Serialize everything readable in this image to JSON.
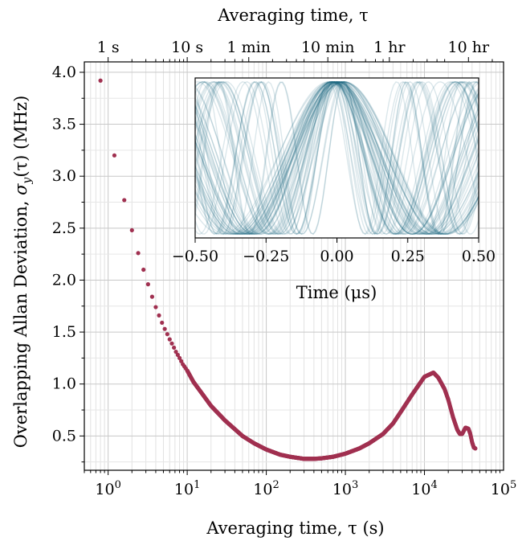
{
  "chart_data": [
    {
      "type": "scatter",
      "xlabel": "Averaging time, τ (s)",
      "ylabel": "Overlapping Allan Deviation, σ_y(τ) (MHz)",
      "ylabel_parts": {
        "pre": "Overlapping Allan Deviation, ",
        "sigma": "σ",
        "sub": "y",
        "tau": "(τ) (MHz)"
      },
      "xscale": "log",
      "xlim": [
        0.5,
        100000
      ],
      "ylim": [
        0.17,
        4.1
      ],
      "grid": true,
      "color": "#a03050",
      "x_ticks": [
        "10^0",
        "10^1",
        "10^2",
        "10^3",
        "10^4",
        "10^5"
      ],
      "x_tick_base": "10",
      "x_tick_exps": [
        "0",
        "1",
        "2",
        "3",
        "4",
        "5"
      ],
      "y_ticks": [
        "0.5",
        "1.0",
        "1.5",
        "2.0",
        "2.5",
        "3.0",
        "3.5",
        "4.0"
      ],
      "top_axis": {
        "label": "Averaging time, τ",
        "ticks": [
          {
            "label": "1 s",
            "seconds": 1
          },
          {
            "label": "10 s",
            "seconds": 10
          },
          {
            "label": "1 min",
            "seconds": 60
          },
          {
            "label": "10 min",
            "seconds": 600
          },
          {
            "label": "1 hr",
            "seconds": 3600
          },
          {
            "label": "10 hr",
            "seconds": 36000
          }
        ]
      },
      "series": [
        {
          "x": [
            0.8,
            1.2,
            1.6,
            2.0,
            2.4,
            2.8,
            3.2,
            3.6,
            4.0,
            4.4,
            4.8,
            5.2,
            5.6,
            6.0,
            6.4,
            6.8,
            7.2,
            7.6,
            8.0,
            8.4,
            8.8,
            9.2,
            9.6,
            10,
            12,
            15,
            20,
            30,
            50,
            70,
            100,
            150,
            200,
            300,
            400,
            500,
            700,
            1000,
            1500,
            2000,
            3000,
            4000,
            5000,
            7000,
            10000,
            13000,
            15000,
            18000,
            20000,
            23000,
            26000,
            28000,
            30000,
            33000,
            36000,
            38000,
            40000,
            42000,
            44000
          ],
          "y": [
            3.92,
            3.2,
            2.77,
            2.48,
            2.26,
            2.1,
            1.96,
            1.84,
            1.74,
            1.66,
            1.59,
            1.53,
            1.48,
            1.43,
            1.39,
            1.35,
            1.31,
            1.28,
            1.25,
            1.22,
            1.19,
            1.17,
            1.15,
            1.13,
            1.02,
            0.92,
            0.79,
            0.65,
            0.5,
            0.43,
            0.37,
            0.32,
            0.3,
            0.28,
            0.28,
            0.285,
            0.3,
            0.33,
            0.38,
            0.43,
            0.52,
            0.62,
            0.73,
            0.9,
            1.07,
            1.11,
            1.06,
            0.95,
            0.85,
            0.68,
            0.56,
            0.52,
            0.52,
            0.58,
            0.57,
            0.52,
            0.44,
            0.39,
            0.38
          ]
        }
      ]
    },
    {
      "type": "line",
      "xlabel": "Time (μs)",
      "xlim": [
        -0.5,
        0.5
      ],
      "x_ticks": [
        "−0.50",
        "−0.25",
        "0.00",
        "0.25",
        "0.50"
      ],
      "color": "#1f6a85"
    }
  ]
}
